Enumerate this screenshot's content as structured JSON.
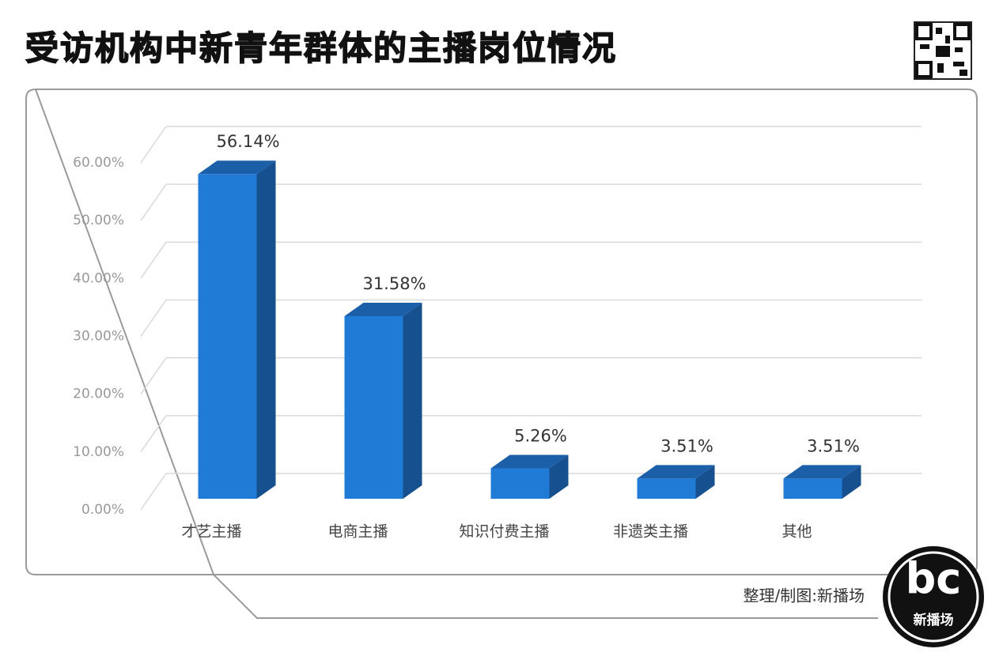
{
  "chart_data": {
    "type": "bar",
    "title": "受访机构中新青年群体的主播岗位情况",
    "categories": [
      "才艺主播",
      "电商主播",
      "知识付费主播",
      "非遗类主播",
      "其他"
    ],
    "values": [
      56.14,
      31.58,
      5.26,
      3.51,
      3.51
    ],
    "value_labels": [
      "56.14%",
      "31.58%",
      "5.26%",
      "3.51%",
      "3.51%"
    ],
    "color": "#1f7bd6",
    "ylim": [
      0,
      60
    ],
    "yticks": [
      {
        "value": 0,
        "label": "0.00%"
      },
      {
        "value": 10,
        "label": "10.00%"
      },
      {
        "value": 20,
        "label": "20.00%"
      },
      {
        "value": 30,
        "label": "30.00%"
      },
      {
        "value": 40,
        "label": "40.00%"
      },
      {
        "value": 50,
        "label": "50.00%"
      },
      {
        "value": 60,
        "label": "60.00%"
      }
    ],
    "grid": true,
    "source": "整理/制图:新播场",
    "logo": "bc",
    "logo_caption": "新播场"
  }
}
